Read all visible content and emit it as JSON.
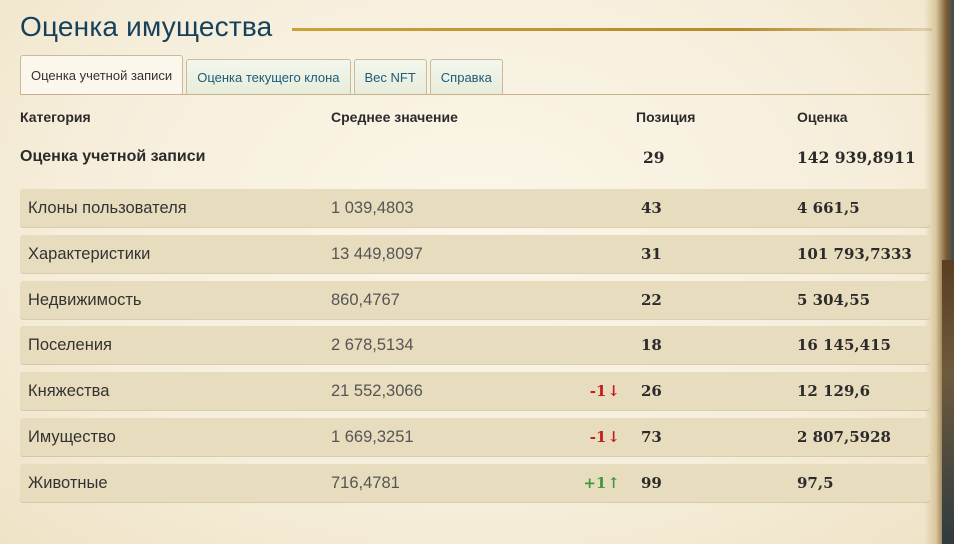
{
  "page": {
    "title": "Оценка имущества"
  },
  "tabs": [
    {
      "label": "Оценка учетной записи",
      "active": true
    },
    {
      "label": "Оценка текущего клона",
      "active": false
    },
    {
      "label": "Вес NFT",
      "active": false
    },
    {
      "label": "Справка",
      "active": false
    }
  ],
  "table": {
    "headers": {
      "category": "Категория",
      "average": "Среднее значение",
      "position": "Позиция",
      "score": "Оценка"
    },
    "summary": {
      "label": "Оценка учетной записи",
      "position": "29",
      "score": "142 939,8911"
    },
    "rows": [
      {
        "category": "Клоны пользователя",
        "average": "1 039,4803",
        "change": "",
        "change_dir": "",
        "position": "43",
        "score": "4 661,5"
      },
      {
        "category": "Характеристики",
        "average": "13 449,8097",
        "change": "",
        "change_dir": "",
        "position": "31",
        "score": "101 793,7333"
      },
      {
        "category": "Недвижимость",
        "average": "860,4767",
        "change": "",
        "change_dir": "",
        "position": "22",
        "score": "5 304,55"
      },
      {
        "category": "Поселения",
        "average": "2 678,5134",
        "change": "",
        "change_dir": "",
        "position": "18",
        "score": "16 145,415"
      },
      {
        "category": "Княжества",
        "average": "21 552,3066",
        "change": "-1",
        "change_dir": "down",
        "position": "26",
        "score": "12 129,6"
      },
      {
        "category": "Имущество",
        "average": "1 669,3251",
        "change": "-1",
        "change_dir": "down",
        "position": "73",
        "score": "2 807,5928"
      },
      {
        "category": "Животные",
        "average": "716,4781",
        "change": "+1",
        "change_dir": "up",
        "position": "99",
        "score": "97,5"
      }
    ]
  },
  "colors": {
    "title": "#16415a",
    "tab_text": "#1d5b78",
    "row_bg": "#e8dcbe",
    "down": "#c41c1c",
    "up": "#3f9a3f"
  }
}
